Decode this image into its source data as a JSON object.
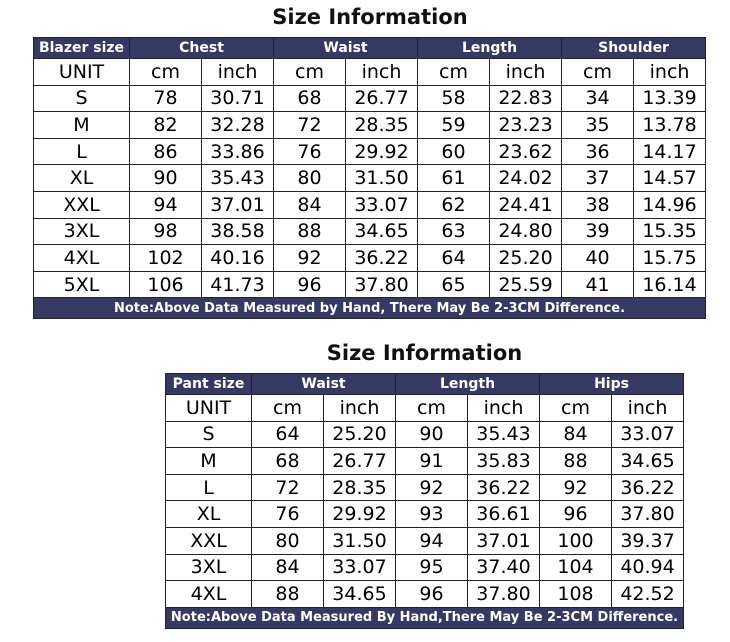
{
  "blazer": {
    "title": "Size Information",
    "headers": [
      "Blazer size",
      "Chest",
      "Waist",
      "Length",
      "Shoulder"
    ],
    "units": [
      "UNIT",
      "cm",
      "inch",
      "cm",
      "inch",
      "cm",
      "inch",
      "cm",
      "inch"
    ],
    "rows": [
      [
        "S",
        "78",
        "30.71",
        "68",
        "26.77",
        "58",
        "22.83",
        "34",
        "13.39"
      ],
      [
        "M",
        "82",
        "32.28",
        "72",
        "28.35",
        "59",
        "23.23",
        "35",
        "13.78"
      ],
      [
        "L",
        "86",
        "33.86",
        "76",
        "29.92",
        "60",
        "23.62",
        "36",
        "14.17"
      ],
      [
        "XL",
        "90",
        "35.43",
        "80",
        "31.50",
        "61",
        "24.02",
        "37",
        "14.57"
      ],
      [
        "XXL",
        "94",
        "37.01",
        "84",
        "33.07",
        "62",
        "24.41",
        "38",
        "14.96"
      ],
      [
        "3XL",
        "98",
        "38.58",
        "88",
        "34.65",
        "63",
        "24.80",
        "39",
        "15.35"
      ],
      [
        "4XL",
        "102",
        "40.16",
        "92",
        "36.22",
        "64",
        "25.20",
        "40",
        "15.75"
      ],
      [
        "5XL",
        "106",
        "41.73",
        "96",
        "37.80",
        "65",
        "25.59",
        "41",
        "16.14"
      ]
    ],
    "note": "Note:Above Data Measured by Hand, There May Be 2-3CM Difference."
  },
  "pant": {
    "title": "Size Information",
    "headers": [
      "Pant size",
      "Waist",
      "Length",
      "Hips"
    ],
    "units": [
      "UNIT",
      "cm",
      "inch",
      "cm",
      "inch",
      "cm",
      "inch"
    ],
    "rows": [
      [
        "S",
        "64",
        "25.20",
        "90",
        "35.43",
        "84",
        "33.07"
      ],
      [
        "M",
        "68",
        "26.77",
        "91",
        "35.83",
        "88",
        "34.65"
      ],
      [
        "L",
        "72",
        "28.35",
        "92",
        "36.22",
        "92",
        "36.22"
      ],
      [
        "XL",
        "76",
        "29.92",
        "93",
        "36.61",
        "96",
        "37.80"
      ],
      [
        "XXL",
        "80",
        "31.50",
        "94",
        "37.01",
        "100",
        "39.37"
      ],
      [
        "3XL",
        "84",
        "33.07",
        "95",
        "37.40",
        "104",
        "40.94"
      ],
      [
        "4XL",
        "88",
        "34.65",
        "96",
        "37.80",
        "108",
        "42.52"
      ]
    ],
    "note": "Note:Above Data Measured By Hand,There May Be 2-3CM Difference."
  }
}
